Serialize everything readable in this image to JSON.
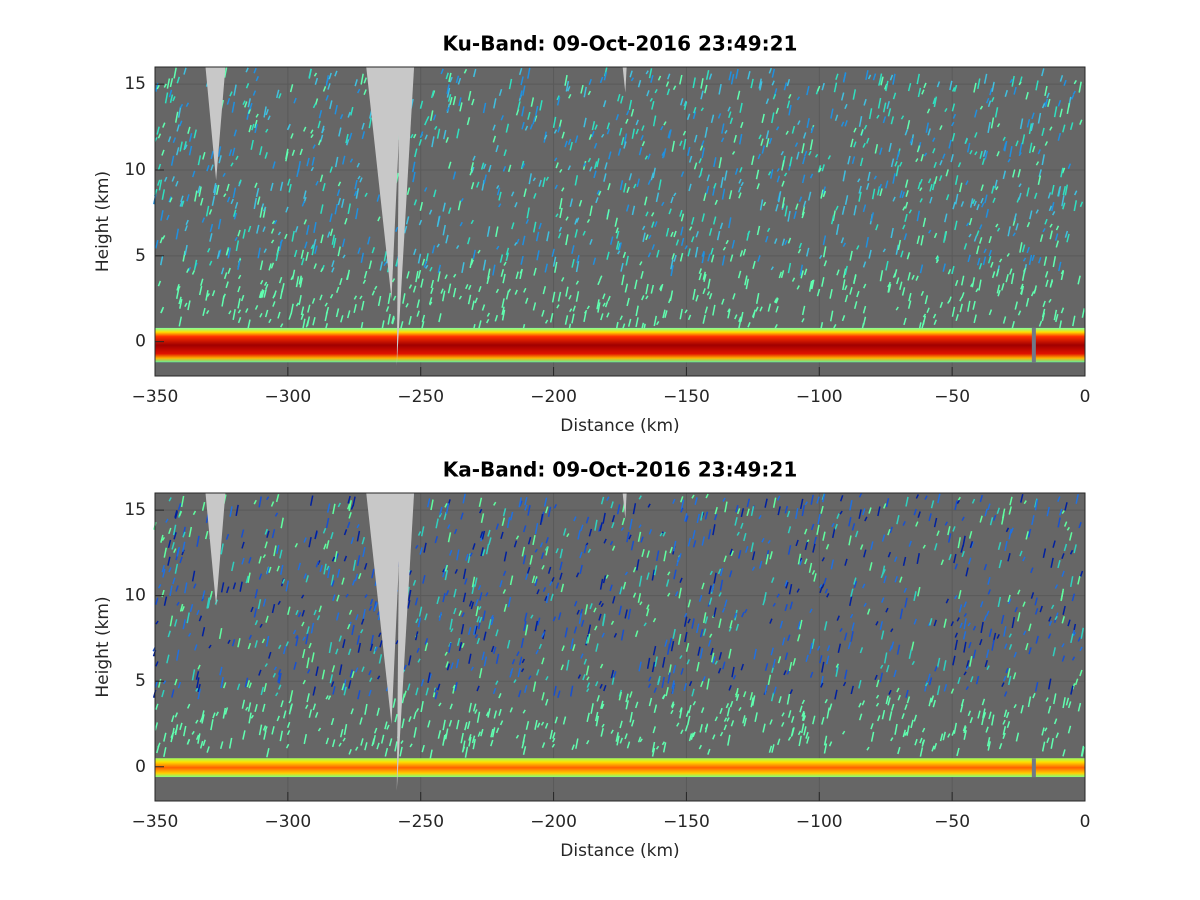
{
  "chart_data": [
    {
      "type": "curtain",
      "title": "Ku-Band: 09-Oct-2016 23:49:21",
      "xlabel": "Distance (km)",
      "ylabel": "Height (km)",
      "xlim": [
        -350,
        0
      ],
      "ylim": [
        -2,
        16
      ],
      "xticks": [
        {
          "value": -350,
          "label": "−350"
        },
        {
          "value": -300,
          "label": "−300"
        },
        {
          "value": -250,
          "label": "−250"
        },
        {
          "value": -200,
          "label": "−200"
        },
        {
          "value": -150,
          "label": "−150"
        },
        {
          "value": -100,
          "label": "−100"
        },
        {
          "value": -50,
          "label": "−50"
        },
        0
      ],
      "yticks": [
        0,
        5,
        10,
        15
      ],
      "grid": true
    },
    {
      "type": "curtain",
      "title": "Ka-Band: 09-Oct-2016 23:49:21",
      "xlabel": "Distance (km)",
      "ylabel": "Height (km)",
      "xlim": [
        -350,
        0
      ],
      "ylim": [
        -2,
        16
      ],
      "xticks": [
        {
          "value": -350,
          "label": "−350"
        },
        {
          "value": -300,
          "label": "−300"
        },
        {
          "value": -250,
          "label": "−250"
        },
        {
          "value": -200,
          "label": "−200"
        },
        {
          "value": -150,
          "label": "−150"
        },
        {
          "value": -100,
          "label": "−100"
        },
        {
          "value": -50,
          "label": "−50"
        },
        0
      ],
      "yticks": [
        0,
        5,
        10,
        15
      ],
      "grid": true
    }
  ]
}
